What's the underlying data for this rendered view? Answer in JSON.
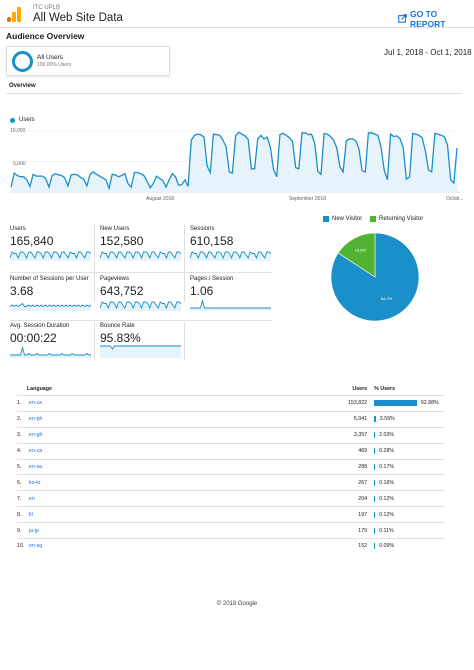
{
  "header": {
    "property_name": "ITC UPLB",
    "view_name": "All Web Site Data",
    "goto_label": "GO TO REPORT",
    "logo_icon": "analytics-logo-icon",
    "accent": "#1a73e8"
  },
  "report": {
    "title": "Audience Overview",
    "segment_name": "All Users",
    "segment_pct": "100.00% Users",
    "date_range": "Jul 1, 2018 - Oct 1, 2018",
    "tab_label": "Overview"
  },
  "chart_data": [
    {
      "type": "area",
      "series": [
        {
          "name": "Users",
          "color": "#1a8fc9",
          "values": [
            800,
            3100,
            2700,
            2500,
            2500,
            2000,
            900,
            2900,
            2600,
            2600,
            2600,
            2200,
            800,
            2700,
            3000,
            2800,
            2700,
            2300,
            1000,
            2800,
            2900,
            2800,
            2400,
            2100,
            1000,
            2900,
            3300,
            2900,
            2600,
            2300,
            2000,
            600,
            2900,
            2800,
            2500,
            2700,
            3000,
            1400,
            800,
            3200,
            3200,
            3000,
            2700,
            1800,
            700,
            1400,
            2600,
            2200,
            1900,
            800,
            2000,
            3000,
            2500,
            1100,
            1200,
            2000,
            900,
            8500,
            9300,
            9500,
            9400,
            9000,
            4300,
            3200,
            9500,
            9400,
            9300,
            8500,
            7400,
            3300,
            3100,
            9200,
            9800,
            9500,
            9200,
            8600,
            3800,
            3800,
            8700,
            9300,
            8700,
            9000,
            7300,
            3700,
            2500,
            9400,
            9600,
            9300,
            8900,
            8300,
            4000,
            3800,
            9700,
            9700,
            9400,
            9500,
            8000,
            3400,
            2900,
            9600,
            9500,
            9100,
            8500,
            7200,
            4100,
            3300,
            8400,
            8700,
            8700,
            8400,
            7100,
            3500,
            3300,
            9700,
            9700,
            9500,
            9300,
            7300,
            3600,
            2000,
            9500,
            9100,
            9200,
            8700,
            7300,
            2100,
            2500,
            9600,
            9500,
            9300,
            8900,
            6700,
            3600,
            3300,
            9600,
            9500,
            9300,
            9100,
            7700,
            2000,
            1500,
            7200
          ]
        }
      ],
      "ylim": [
        0,
        10000
      ],
      "y_ticks": [
        "10,000",
        "5,000"
      ],
      "x_ticks": [
        "August 2018",
        "September 2018",
        "Octob..."
      ],
      "grid": true
    },
    {
      "type": "pie",
      "categories": [
        "New Visitor",
        "Returning Visitor"
      ],
      "values": [
        84.2,
        15.8
      ],
      "labels": [
        "84.2%",
        "15.8%"
      ],
      "colors": [
        "#1a8fc9",
        "#50b432"
      ],
      "legend_placement": "top"
    }
  ],
  "metrics": [
    {
      "label": "Users",
      "value": "165,840",
      "spark": [
        2,
        6,
        5,
        5,
        2,
        6,
        6,
        5,
        2,
        6,
        6,
        4,
        2,
        6,
        6,
        5,
        2,
        6,
        6,
        5,
        2,
        6,
        6,
        5,
        2,
        6,
        6,
        4,
        2,
        6,
        5,
        5,
        2,
        6,
        6,
        4,
        2,
        6,
        6,
        5
      ]
    },
    {
      "label": "New Users",
      "value": "152,580",
      "spark": [
        2,
        6,
        5,
        5,
        2,
        6,
        6,
        5,
        2,
        6,
        6,
        4,
        2,
        6,
        6,
        5,
        2,
        6,
        6,
        5,
        2,
        6,
        6,
        5,
        2,
        6,
        6,
        4,
        2,
        6,
        5,
        5,
        2,
        6,
        6,
        4,
        2,
        6,
        6,
        5
      ]
    },
    {
      "label": "Sessions",
      "value": "610,158",
      "spark": [
        2,
        6,
        5,
        5,
        2,
        6,
        6,
        5,
        2,
        6,
        6,
        4,
        2,
        6,
        6,
        5,
        2,
        6,
        6,
        5,
        2,
        6,
        6,
        5,
        2,
        6,
        6,
        4,
        2,
        6,
        5,
        5,
        2,
        6,
        6,
        4,
        2,
        6,
        6,
        5
      ]
    },
    {
      "label": "Number of Sessions per User",
      "value": "3.68",
      "spark": [
        3,
        4,
        3,
        4,
        3,
        4,
        5,
        3,
        3,
        4,
        3,
        4,
        3,
        4,
        3,
        4,
        3,
        4,
        3,
        4,
        3,
        4,
        3,
        4,
        3,
        4,
        3,
        4,
        3,
        4,
        3,
        4,
        3,
        4,
        3,
        4,
        3,
        4,
        3,
        4
      ]
    },
    {
      "label": "Pageviews",
      "value": "643,752",
      "spark": [
        2,
        6,
        5,
        5,
        2,
        6,
        6,
        5,
        2,
        6,
        6,
        4,
        2,
        6,
        6,
        5,
        2,
        6,
        6,
        5,
        2,
        6,
        6,
        5,
        2,
        6,
        6,
        4,
        2,
        6,
        5,
        5,
        2,
        6,
        6,
        4,
        2,
        6,
        6,
        5
      ]
    },
    {
      "label": "Pages / Session",
      "value": "1.06",
      "spark": [
        2,
        2,
        2,
        2,
        2,
        2,
        7,
        2,
        2,
        2,
        2,
        2,
        2,
        2,
        2,
        2,
        2,
        2,
        2,
        2,
        2,
        2,
        2,
        2,
        2,
        2,
        2,
        2,
        2,
        2,
        2,
        2,
        2,
        2,
        2,
        2,
        2,
        2,
        2,
        2
      ]
    },
    {
      "label": "Avg. Session Duration",
      "value": "00:00:22",
      "spark": [
        2,
        2,
        2,
        2,
        2,
        2,
        7,
        2,
        2,
        3,
        2,
        2,
        2,
        3,
        2,
        2,
        2,
        2,
        2,
        3,
        2,
        2,
        2,
        2,
        2,
        3,
        2,
        2,
        2,
        2,
        3,
        2,
        2,
        2,
        2,
        2,
        2,
        3,
        2,
        2
      ]
    },
    {
      "label": "Bounce Rate",
      "value": "95.83%",
      "spark": [
        8,
        8,
        8,
        8,
        8,
        8,
        6,
        8,
        8,
        8,
        8,
        8,
        8,
        8,
        8,
        8,
        8,
        8,
        8,
        8,
        8,
        8,
        8,
        8,
        8,
        8,
        8,
        8,
        8,
        8,
        8,
        8,
        8,
        8,
        8,
        8,
        8,
        8,
        8,
        8
      ]
    }
  ],
  "language_table": {
    "headers": {
      "language": "Language",
      "users": "Users",
      "pct": "% Users"
    },
    "bar_color": "#1a8fc9",
    "rows": [
      {
        "idx": "1.",
        "lang": "en-us",
        "users": "153,822",
        "pct": "92.88%",
        "frac": 0.9288
      },
      {
        "idx": "2.",
        "lang": "en-ph",
        "users": "5,941",
        "pct": "3.59%",
        "frac": 0.0359
      },
      {
        "idx": "3.",
        "lang": "en-gb",
        "users": "3,357",
        "pct": "2.03%",
        "frac": 0.0203
      },
      {
        "idx": "4.",
        "lang": "en-ca",
        "users": "469",
        "pct": "0.28%",
        "frac": 0.0028
      },
      {
        "idx": "5.",
        "lang": "en-au",
        "users": "288",
        "pct": "0.17%",
        "frac": 0.0017
      },
      {
        "idx": "6.",
        "lang": "ko-kr",
        "users": "267",
        "pct": "0.16%",
        "frac": 0.0016
      },
      {
        "idx": "7.",
        "lang": "en",
        "users": "204",
        "pct": "0.12%",
        "frac": 0.0012
      },
      {
        "idx": "8.",
        "lang": "fil",
        "users": "197",
        "pct": "0.12%",
        "frac": 0.0012
      },
      {
        "idx": "9.",
        "lang": "ja-jp",
        "users": "179",
        "pct": "0.11%",
        "frac": 0.0011
      },
      {
        "idx": "10.",
        "lang": "en-sg",
        "users": "152",
        "pct": "0.09%",
        "frac": 0.0009
      }
    ]
  },
  "footer": {
    "text": "© 2018 Google"
  }
}
